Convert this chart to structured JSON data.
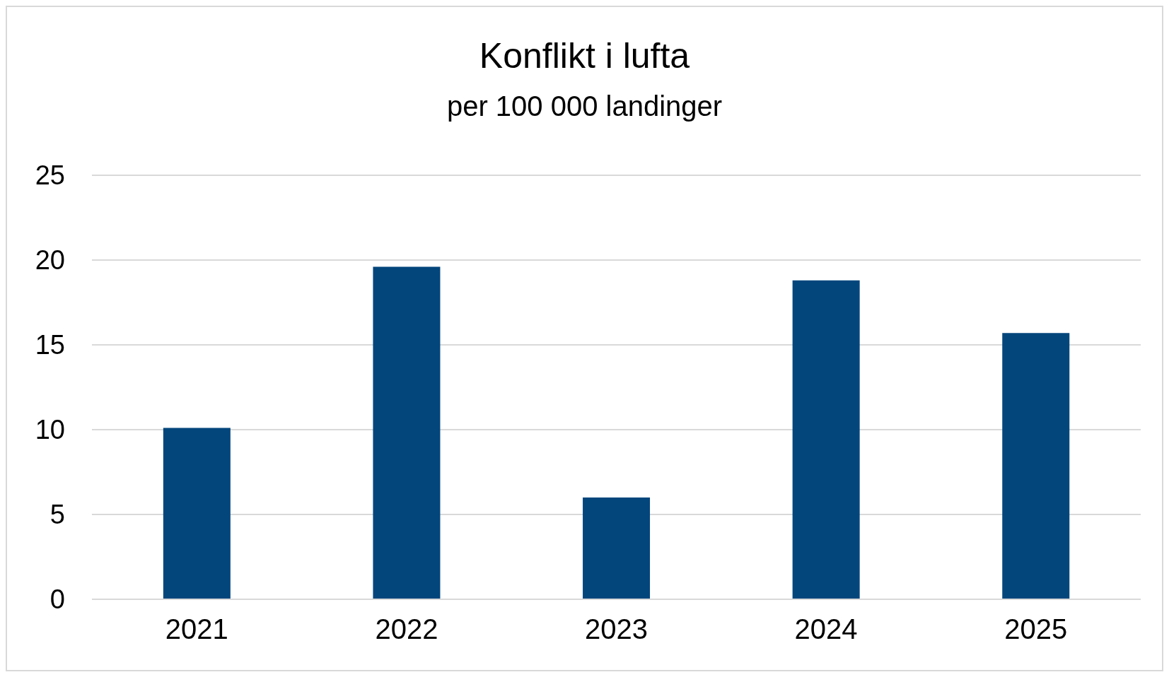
{
  "chart_data": {
    "type": "bar",
    "title": "Konflikt i lufta",
    "subtitle": "per 100 000 landinger",
    "categories": [
      "2021",
      "2022",
      "2023",
      "2024",
      "2025"
    ],
    "values": [
      10.1,
      19.6,
      6.0,
      18.8,
      15.7
    ],
    "color": "#03467c",
    "ylim": [
      0,
      25
    ],
    "yticks": [
      0,
      5,
      10,
      15,
      20,
      25
    ],
    "grid": "y"
  }
}
